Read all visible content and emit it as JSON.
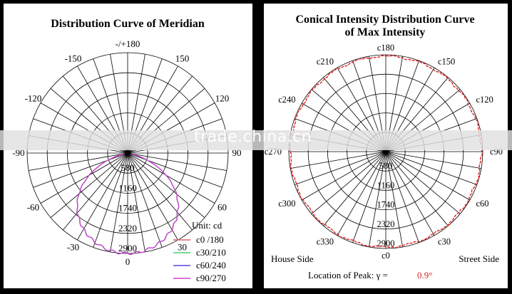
{
  "chart_data": [
    {
      "type": "polar",
      "title": "Distribution Curve of  Meridian",
      "angle_labels": [
        "-/+180",
        "150",
        "120",
        "90",
        "60",
        "30",
        "0",
        "-30",
        "-60",
        "-90",
        "-120",
        "-150"
      ],
      "radial_ticks": [
        "580",
        "1160",
        "1740",
        "2320",
        "2900"
      ],
      "unit": "Unit: cd",
      "legend": [
        {
          "name": "c0 /180",
          "color": "#e06070"
        },
        {
          "name": "c30/210",
          "color": "#40d070"
        },
        {
          "name": "c60/240",
          "color": "#6040e0"
        },
        {
          "name": "c90/270",
          "color": "#d040d0"
        }
      ],
      "series_shape": "bat-wing lobes, peak near 2900 cd at 0 deg, falling to near 0 at about +/-75 deg"
    },
    {
      "type": "polar",
      "title_line1": "Conical Intensity Distribution Curve",
      "title_line2": "of  Max Intensity",
      "angle_labels": [
        "c180",
        "c150",
        "c120",
        "c90",
        "c60",
        "c30",
        "c0",
        "c330",
        "c300",
        "c270",
        "c240",
        "c210"
      ],
      "radial_ticks": [
        "580",
        "1160",
        "1740",
        "2320",
        "2900"
      ],
      "house_side": "House Side",
      "street_side": "Street Side",
      "peak_label": "Location of Peak:  γ  =",
      "peak_value": "0.9°",
      "series_color": "#e02020",
      "series_level": 2900
    }
  ],
  "watermark": "trade.china.cn"
}
